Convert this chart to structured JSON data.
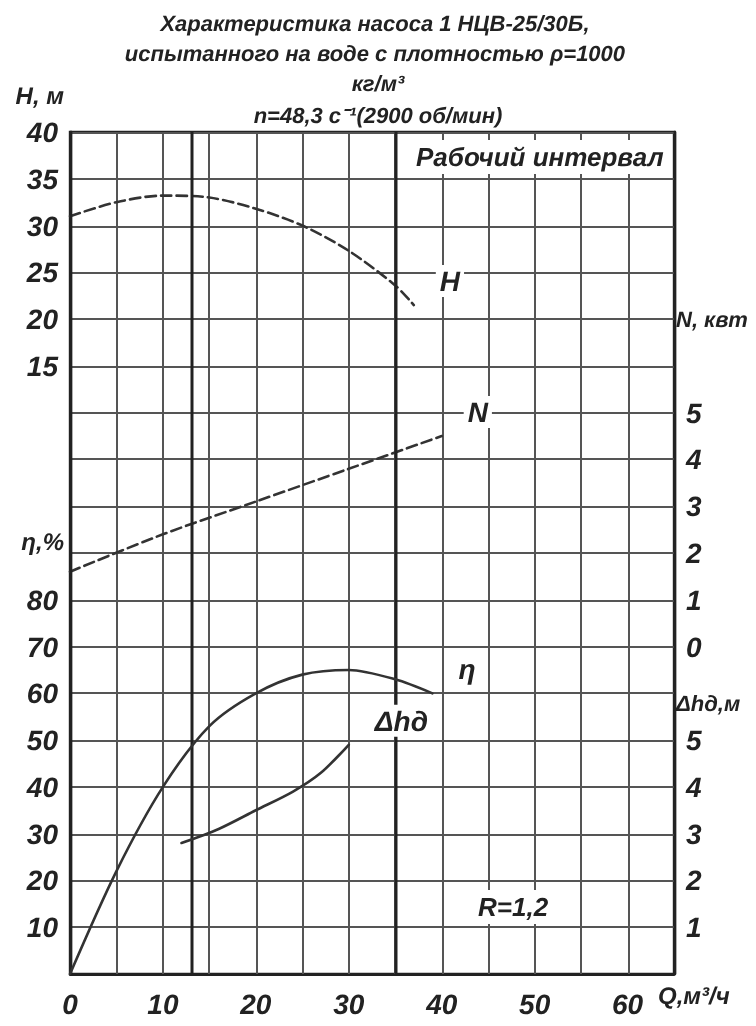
{
  "chart_data": [
    {
      "type": "line",
      "title": "Характеристика насоса 1 НЦВ-25/30Б, испытанного на воде с плотностью ρ=1000 кг/м³",
      "subtitle": "n=48,3 с⁻¹(2900 об/мин)",
      "xlabel": "Q,м³/ч",
      "ylabel": "H, м",
      "y2label": "N, квт",
      "xlim": [
        0,
        65
      ],
      "xticks": [
        0,
        10,
        20,
        30,
        40,
        50,
        60
      ],
      "ylim": [
        -50,
        40
      ],
      "yticks": [
        15,
        20,
        25,
        30,
        35,
        40
      ],
      "y2lim": [
        -7,
        11
      ],
      "y2ticks": [
        0,
        1,
        2,
        3,
        4,
        5
      ],
      "grid": true,
      "legend": false,
      "marker": "none",
      "series": [
        {
          "name": "H",
          "axis": "y",
          "color": "#333333",
          "line_style": "dashed",
          "x": [
            0,
            5,
            10,
            15,
            20,
            25,
            30,
            35,
            37
          ],
          "values": [
            31,
            32.5,
            33.2,
            33,
            31.8,
            30,
            27.3,
            23.6,
            21.5
          ]
        },
        {
          "name": "N",
          "axis": "y2",
          "color": "#333333",
          "line_style": "dashed",
          "x": [
            0,
            10,
            20,
            30,
            40
          ],
          "values": [
            1.6,
            2.4,
            3.1,
            3.8,
            4.5
          ]
        }
      ],
      "ref_lines": [
        {
          "axis": "x",
          "value": 13,
          "label": null
        },
        {
          "axis": "x",
          "value": 35,
          "label": null
        }
      ],
      "annotations": [
        "Рабочий интервал"
      ]
    },
    {
      "type": "line",
      "ylabel": "η,%",
      "y2label": "Δhд,м",
      "xlim": [
        0,
        65
      ],
      "ylim": [
        0,
        180
      ],
      "yticks": [
        10,
        20,
        30,
        40,
        50,
        60,
        70,
        80
      ],
      "y2lim": [
        0,
        18
      ],
      "y2ticks": [
        1,
        2,
        3,
        4,
        5
      ],
      "tick_labels": "y",
      "legend": false,
      "marker": "none",
      "series": [
        {
          "name": "η",
          "axis": "y",
          "color": "#333333",
          "line_style": "solid",
          "x": [
            0,
            5,
            10,
            15,
            20,
            25,
            30,
            35,
            39
          ],
          "values": [
            0,
            22,
            40,
            53,
            60,
            64,
            65,
            63,
            60
          ]
        },
        {
          "name": "Δhд",
          "axis": "y2",
          "color": "#333333",
          "line_style": "solid",
          "x": [
            12,
            16,
            20,
            24,
            27,
            30
          ],
          "values": [
            2.8,
            3.1,
            3.5,
            3.9,
            4.3,
            4.9
          ]
        }
      ],
      "annotations": [
        "R=1,2"
      ]
    }
  ]
}
